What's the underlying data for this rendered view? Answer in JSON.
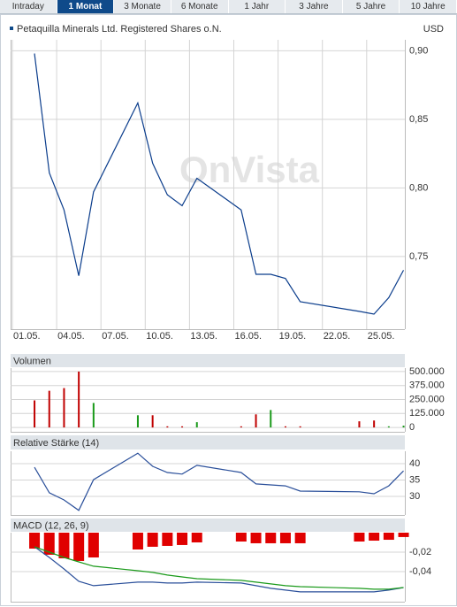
{
  "tabs": [
    "Intraday",
    "1 Monat",
    "3 Monate",
    "6 Monate",
    "1 Jahr",
    "3 Jahre",
    "5 Jahre",
    "10 Jahre"
  ],
  "active_tab": 1,
  "chart_data": [
    {
      "type": "line",
      "title": "Petaquilla Minerals Ltd. Registered Shares o.N.",
      "currency": "USD",
      "watermark": "OnVista",
      "x": [
        "02.05.",
        "03.05.",
        "04.05.",
        "05.05.",
        "06.05.",
        "09.05.",
        "10.05.",
        "11.05.",
        "12.05.",
        "13.05.",
        "16.05.",
        "17.05.",
        "18.05.",
        "19.05.",
        "20.05.",
        "24.05.",
        "25.05.",
        "26.05.",
        "27.05."
      ],
      "xticks": [
        "01.05.",
        "04.05.",
        "07.05.",
        "10.05.",
        "13.05.",
        "16.05.",
        "19.05.",
        "22.05.",
        "25.05."
      ],
      "series": [
        {
          "color": "#0b3d8c",
          "values": [
            0.898,
            0.811,
            0.784,
            0.736,
            0.797,
            0.862,
            0.818,
            0.795,
            0.787,
            0.807,
            0.784,
            0.737,
            0.737,
            0.734,
            0.717,
            0.71,
            0.708,
            0.72,
            0.74
          ]
        }
      ],
      "ylim": [
        0.697,
        0.908
      ],
      "yticks": [
        {
          "value": 0.9,
          "label": "0,90"
        },
        {
          "value": 0.85,
          "label": "0,85"
        },
        {
          "value": 0.8,
          "label": "0,80"
        },
        {
          "value": 0.75,
          "label": "0,75"
        }
      ],
      "grid": true
    },
    {
      "type": "bar",
      "title": "Volumen",
      "x": [
        "02.05.",
        "03.05.",
        "04.05.",
        "05.05.",
        "06.05.",
        "09.05.",
        "10.05.",
        "11.05.",
        "12.05.",
        "13.05.",
        "16.05.",
        "17.05.",
        "18.05.",
        "19.05.",
        "20.05.",
        "24.05.",
        "25.05.",
        "26.05.",
        "27.05."
      ],
      "series": [
        {
          "values": [
            242000,
            328000,
            352000,
            500000,
            219000,
            109000,
            109000,
            10000,
            10000,
            47000,
            10000,
            117000,
            156000,
            10000,
            10000,
            55000,
            62000,
            10000,
            16000
          ],
          "colors": [
            "#c00000",
            "#c00000",
            "#c00000",
            "#c00000",
            "#1a9a1a",
            "#1a9a1a",
            "#c00000",
            "#c00000",
            "#c00000",
            "#1a9a1a",
            "#c00000",
            "#c00000",
            "#1a9a1a",
            "#c00000",
            "#c00000",
            "#c00000",
            "#c00000",
            "#1a9a1a",
            "#1a9a1a"
          ]
        }
      ],
      "ylim": [
        -39000,
        531000
      ],
      "yticks": [
        {
          "value": 500000,
          "label": "500.000"
        },
        {
          "value": 375000,
          "label": "375.000"
        },
        {
          "value": 250000,
          "label": "250.000"
        },
        {
          "value": 125000,
          "label": "125.000"
        },
        0
      ],
      "grid": true
    },
    {
      "type": "line",
      "title": "Relative Stärke (14)",
      "x": [
        "02.05.",
        "03.05.",
        "04.05.",
        "05.05.",
        "06.05.",
        "09.05.",
        "10.05.",
        "11.05.",
        "12.05.",
        "13.05.",
        "16.05.",
        "17.05.",
        "18.05.",
        "19.05.",
        "20.05.",
        "24.05.",
        "25.05.",
        "26.05.",
        "27.05."
      ],
      "series": [
        {
          "color": "#2a4f9a",
          "values": [
            38.9,
            31.1,
            28.9,
            25.7,
            35.1,
            43.2,
            39.2,
            37.3,
            36.8,
            39.5,
            37.3,
            33.8,
            33.5,
            33.2,
            31.6,
            31.4,
            30.8,
            33.2,
            37.8
          ]
        }
      ],
      "ylim": [
        24.3,
        43.8
      ],
      "yticks": [
        40,
        35,
        30
      ],
      "grid": true
    },
    {
      "type": "combo",
      "title": "MACD (12, 26, 9)",
      "x": [
        "02.05.",
        "03.05.",
        "04.05.",
        "05.05.",
        "06.05.",
        "09.05.",
        "10.05.",
        "11.05.",
        "12.05.",
        "13.05.",
        "16.05.",
        "17.05.",
        "18.05.",
        "19.05.",
        "20.05.",
        "24.05.",
        "25.05.",
        "26.05.",
        "27.05."
      ],
      "series": [
        {
          "type": "bar",
          "color": "#e00000",
          "values": [
            -0.0164,
            -0.0227,
            -0.0264,
            -0.0291,
            -0.0255,
            -0.0173,
            -0.0145,
            -0.0136,
            -0.0127,
            -0.01,
            -0.0091,
            -0.0109,
            -0.0109,
            -0.0109,
            -0.0109,
            -0.0091,
            -0.0082,
            -0.0073,
            -0.0045
          ]
        },
        {
          "type": "line",
          "color": "#2a4f9a",
          "values": [
            -0.0145,
            -0.0255,
            -0.0373,
            -0.05,
            -0.0545,
            -0.0509,
            -0.0509,
            -0.0518,
            -0.0518,
            -0.0509,
            -0.0518,
            -0.0545,
            -0.0573,
            -0.0591,
            -0.0609,
            -0.0609,
            -0.0609,
            -0.0591,
            -0.0564
          ]
        },
        {
          "type": "line",
          "color": "#1a9a1a",
          "values": [
            -0.0145,
            -0.02,
            -0.0255,
            -0.03,
            -0.0345,
            -0.0391,
            -0.0409,
            -0.0436,
            -0.0455,
            -0.0473,
            -0.0491,
            -0.0509,
            -0.0527,
            -0.0545,
            -0.0555,
            -0.0573,
            -0.0582,
            -0.0582,
            -0.0564
          ]
        }
      ],
      "ylim": [
        -0.071,
        0
      ],
      "yticks": [
        {
          "value": -0.02,
          "label": "-0,02"
        },
        {
          "value": -0.04,
          "label": "-0,04"
        }
      ],
      "grid": true
    }
  ]
}
